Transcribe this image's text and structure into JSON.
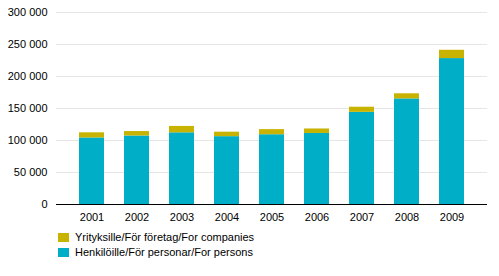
{
  "chart_data": {
    "type": "bar",
    "stacked": true,
    "categories": [
      "2001",
      "2002",
      "2003",
      "2004",
      "2005",
      "2006",
      "2007",
      "2008",
      "2009"
    ],
    "series": [
      {
        "name": "Henkilöille/För personar/For persons",
        "color": "#00aec8",
        "values": [
          104000,
          107000,
          112000,
          106000,
          109000,
          111000,
          144000,
          165000,
          228000
        ]
      },
      {
        "name": "Yrityksille/För företag/For companies",
        "color": "#c8b400",
        "values": [
          8000,
          7000,
          10000,
          7000,
          8000,
          7000,
          8000,
          8000,
          13000
        ]
      }
    ],
    "ylim": [
      0,
      300000
    ],
    "yticks": [
      0,
      {
        "value": 50000,
        "label": "50 000"
      },
      {
        "value": 100000,
        "label": "100 000"
      },
      {
        "value": 150000,
        "label": "150 000"
      },
      {
        "value": 200000,
        "label": "200 000"
      },
      {
        "value": 250000,
        "label": "250 000"
      },
      {
        "value": 300000,
        "label": "300 000"
      }
    ],
    "grid": true,
    "legend": "lower left"
  }
}
